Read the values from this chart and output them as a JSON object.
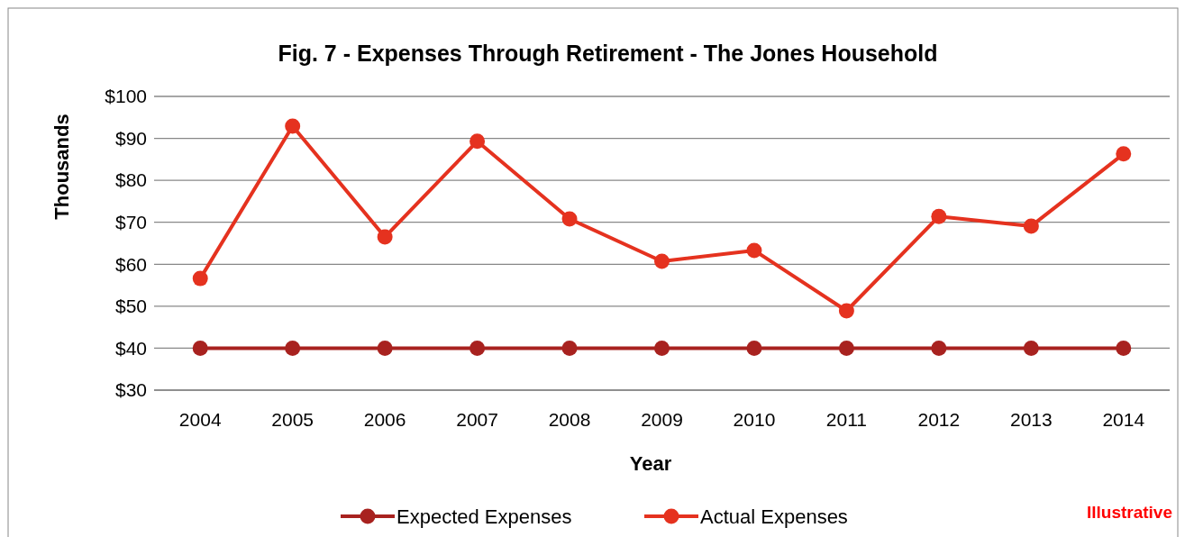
{
  "chart_data": {
    "type": "line",
    "title": "Fig. 7 - Expenses Through Retirement - The Jones Household",
    "xlabel": "Year",
    "ylabel": "Thousands",
    "categories": [
      "2004",
      "2005",
      "2006",
      "2007",
      "2008",
      "2009",
      "2010",
      "2011",
      "2012",
      "2013",
      "2014"
    ],
    "series": [
      {
        "name": "Expected Expenses",
        "color": "#a8221f",
        "values": [
          40,
          40,
          40,
          40,
          40,
          40,
          40,
          40,
          40,
          40,
          40
        ]
      },
      {
        "name": "Actual Expenses",
        "color": "#e5321f",
        "values": [
          56.6,
          92.9,
          66.5,
          89.3,
          70.8,
          60.7,
          63.3,
          48.9,
          71.4,
          69.1,
          86.3
        ]
      }
    ],
    "ylim": [
      30,
      100
    ],
    "yticks": [
      {
        "value": 30,
        "label": "$30"
      },
      {
        "value": 40,
        "label": "$40"
      },
      {
        "value": 50,
        "label": "$50"
      },
      {
        "value": 60,
        "label": "$60"
      },
      {
        "value": 70,
        "label": "$70"
      },
      {
        "value": 80,
        "label": "$80"
      },
      {
        "value": 90,
        "label": "$90"
      },
      {
        "value": 100,
        "label": "$100"
      }
    ],
    "grid": "y",
    "legend": "bottom",
    "marker": "circle",
    "line_style": "solid",
    "annotations": [
      "Illustrative"
    ]
  }
}
